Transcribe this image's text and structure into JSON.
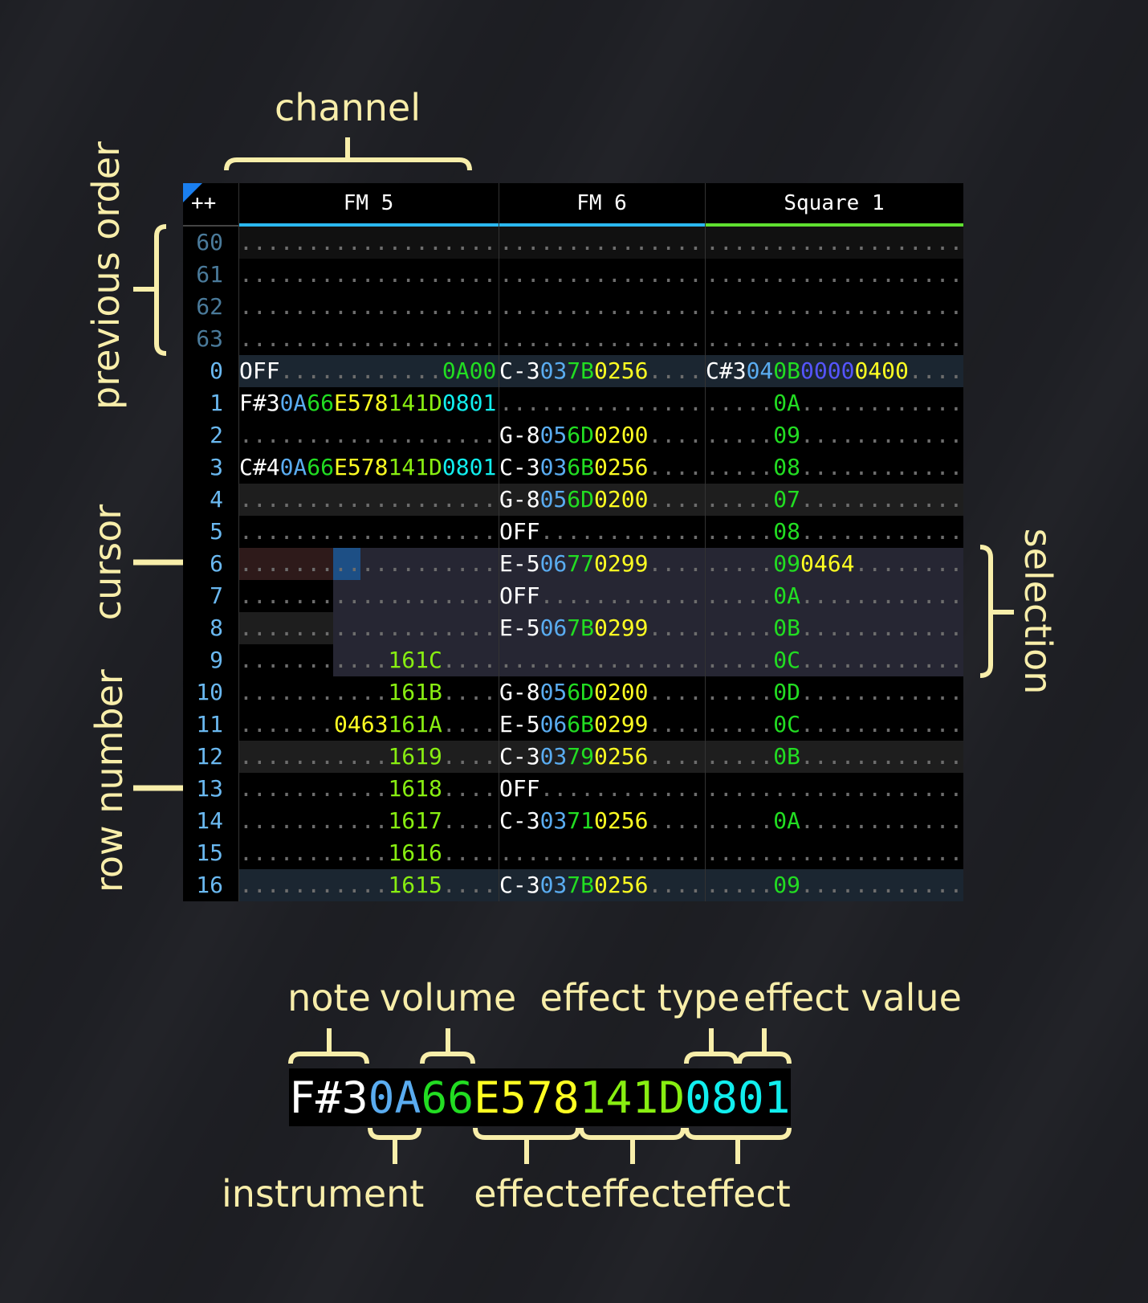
{
  "colors": {
    "note": "#ffffff",
    "ins": "#5aacf0",
    "vol": "#22dd22",
    "yellow": "#ffff22",
    "lime": "#88ee11",
    "cyan": "#11eeee",
    "purple": "#5555ff",
    "green": "#22dd22",
    "rownum_prev": "#4a7a9a",
    "rownum": "#6ab8f0",
    "annotation": "#f8eeaa",
    "corner_marker": "#1a7ff0",
    "bg_bar": "#1b2631",
    "bg_beat": "#1e1e1e",
    "bg_prev_first": "#111111",
    "selection": "#262633",
    "cursor_row": "#2e1a1a",
    "cursor": "#1d4f85"
  },
  "header": {
    "corner_label": "++",
    "channels": [
      {
        "name": "FM 5",
        "accent": "#2bb8f0",
        "effects": 3
      },
      {
        "name": "FM 6",
        "accent": "#2bb8f0",
        "effects": 2
      },
      {
        "name": "Square 1",
        "accent": "#60e030",
        "effects": 3
      }
    ]
  },
  "selection": {
    "first_row": "6",
    "last_row": "9",
    "from": {
      "channel": 0,
      "field": "effect 1"
    },
    "to": {
      "channel": 2,
      "field": "end"
    }
  },
  "cursor": {
    "row": "6",
    "channel": 0,
    "field": "effect 1 type"
  },
  "rows": [
    {
      "n": "60",
      "prev": true,
      "hl": "prev_first",
      "cells": [
        {},
        {},
        {}
      ]
    },
    {
      "n": "61",
      "prev": true,
      "cells": [
        {},
        {},
        {}
      ]
    },
    {
      "n": "62",
      "prev": true,
      "cells": [
        {},
        {},
        {}
      ]
    },
    {
      "n": "63",
      "prev": true,
      "cells": [
        {},
        {},
        {}
      ]
    },
    {
      "n": "0",
      "hl": "bar",
      "cells": [
        {
          "note": "OFF",
          "fx": [
            null,
            null,
            {
              "v": "0A00",
              "c": "green"
            }
          ]
        },
        {
          "note": "C-3",
          "ins": "03",
          "vol": "7B",
          "fx": [
            {
              "v": "0256",
              "c": "yellow"
            }
          ]
        },
        {
          "note": "C#3",
          "ins": "04",
          "vol": "0B",
          "fx": [
            {
              "v": "0000",
              "c": "purple"
            },
            {
              "v": "0400",
              "c": "yellow"
            }
          ]
        }
      ]
    },
    {
      "n": "1",
      "cells": [
        {
          "note": "F#3",
          "ins": "0A",
          "vol": "66",
          "fx": [
            {
              "v": "E578",
              "c": "yellow"
            },
            {
              "v": "141D",
              "c": "lime"
            },
            {
              "v": "0801",
              "c": "cyan"
            }
          ]
        },
        {},
        {
          "vol": "0A"
        }
      ]
    },
    {
      "n": "2",
      "cells": [
        {},
        {
          "note": "G-8",
          "ins": "05",
          "vol": "6D",
          "fx": [
            {
              "v": "0200",
              "c": "yellow"
            }
          ]
        },
        {
          "vol": "09"
        }
      ]
    },
    {
      "n": "3",
      "cells": [
        {
          "note": "C#4",
          "ins": "0A",
          "vol": "66",
          "fx": [
            {
              "v": "E578",
              "c": "yellow"
            },
            {
              "v": "141D",
              "c": "lime"
            },
            {
              "v": "0801",
              "c": "cyan"
            }
          ]
        },
        {
          "note": "C-3",
          "ins": "03",
          "vol": "6B",
          "fx": [
            {
              "v": "0256",
              "c": "yellow"
            }
          ]
        },
        {
          "vol": "08"
        }
      ]
    },
    {
      "n": "4",
      "hl": "beat",
      "cells": [
        {},
        {
          "note": "G-8",
          "ins": "05",
          "vol": "6D",
          "fx": [
            {
              "v": "0200",
              "c": "yellow"
            }
          ]
        },
        {
          "vol": "07"
        }
      ]
    },
    {
      "n": "5",
      "cells": [
        {},
        {
          "note": "OFF"
        },
        {
          "vol": "08"
        }
      ]
    },
    {
      "n": "6",
      "cells": [
        {},
        {
          "note": "E-5",
          "ins": "06",
          "vol": "77",
          "fx": [
            {
              "v": "0299",
              "c": "yellow"
            }
          ]
        },
        {
          "vol": "09",
          "fx": [
            {
              "v": "0464",
              "c": "yellow"
            }
          ]
        }
      ]
    },
    {
      "n": "7",
      "cells": [
        {},
        {
          "note": "OFF"
        },
        {
          "vol": "0A"
        }
      ]
    },
    {
      "n": "8",
      "hl": "beat",
      "cells": [
        {},
        {
          "note": "E-5",
          "ins": "06",
          "vol": "7B",
          "fx": [
            {
              "v": "0299",
              "c": "yellow"
            }
          ]
        },
        {
          "vol": "0B"
        }
      ]
    },
    {
      "n": "9",
      "cells": [
        {
          "fx": [
            null,
            {
              "v": "161C",
              "c": "lime"
            }
          ]
        },
        {},
        {
          "vol": "0C"
        }
      ]
    },
    {
      "n": "10",
      "cells": [
        {
          "fx": [
            null,
            {
              "v": "161B",
              "c": "lime"
            }
          ]
        },
        {
          "note": "G-8",
          "ins": "05",
          "vol": "6D",
          "fx": [
            {
              "v": "0200",
              "c": "yellow"
            }
          ]
        },
        {
          "vol": "0D"
        }
      ]
    },
    {
      "n": "11",
      "cells": [
        {
          "fx": [
            {
              "v": "0463",
              "c": "yellow"
            },
            {
              "v": "161A",
              "c": "lime"
            }
          ]
        },
        {
          "note": "E-5",
          "ins": "06",
          "vol": "6B",
          "fx": [
            {
              "v": "0299",
              "c": "yellow"
            }
          ]
        },
        {
          "vol": "0C"
        }
      ]
    },
    {
      "n": "12",
      "hl": "beat",
      "cells": [
        {
          "fx": [
            null,
            {
              "v": "1619",
              "c": "lime"
            }
          ]
        },
        {
          "note": "C-3",
          "ins": "03",
          "vol": "79",
          "fx": [
            {
              "v": "0256",
              "c": "yellow"
            }
          ]
        },
        {
          "vol": "0B"
        }
      ]
    },
    {
      "n": "13",
      "cells": [
        {
          "fx": [
            null,
            {
              "v": "1618",
              "c": "lime"
            }
          ]
        },
        {
          "note": "OFF"
        },
        {}
      ]
    },
    {
      "n": "14",
      "cells": [
        {
          "fx": [
            null,
            {
              "v": "1617",
              "c": "lime"
            }
          ]
        },
        {
          "note": "C-3",
          "ins": "03",
          "vol": "71",
          "fx": [
            {
              "v": "0256",
              "c": "yellow"
            }
          ]
        },
        {
          "vol": "0A"
        }
      ]
    },
    {
      "n": "15",
      "cells": [
        {
          "fx": [
            null,
            {
              "v": "1616",
              "c": "lime"
            }
          ]
        },
        {},
        {}
      ]
    },
    {
      "n": "16",
      "hl": "bar",
      "cells": [
        {
          "fx": [
            null,
            {
              "v": "1615",
              "c": "lime"
            }
          ]
        },
        {
          "note": "C-3",
          "ins": "03",
          "vol": "7B",
          "fx": [
            {
              "v": "0256",
              "c": "yellow"
            }
          ]
        },
        {
          "vol": "09"
        }
      ]
    }
  ],
  "example": {
    "note": "F#3",
    "ins": "0A",
    "vol": "66",
    "fx": [
      {
        "v": "E578",
        "c": "yellow"
      },
      {
        "v": "141D",
        "c": "lime"
      },
      {
        "v": "0801",
        "c": "cyan"
      }
    ]
  },
  "annotations": {
    "channel": "channel",
    "previous_order": "previous order",
    "cursor": "cursor",
    "row_number": "row number",
    "selection": "selection",
    "note": "note",
    "volume": "volume",
    "effect_type": "effect type",
    "effect_value": "effect value",
    "instrument": "instrument",
    "effect_1": "effect",
    "effect_2": "effect",
    "effect_3": "effect"
  }
}
